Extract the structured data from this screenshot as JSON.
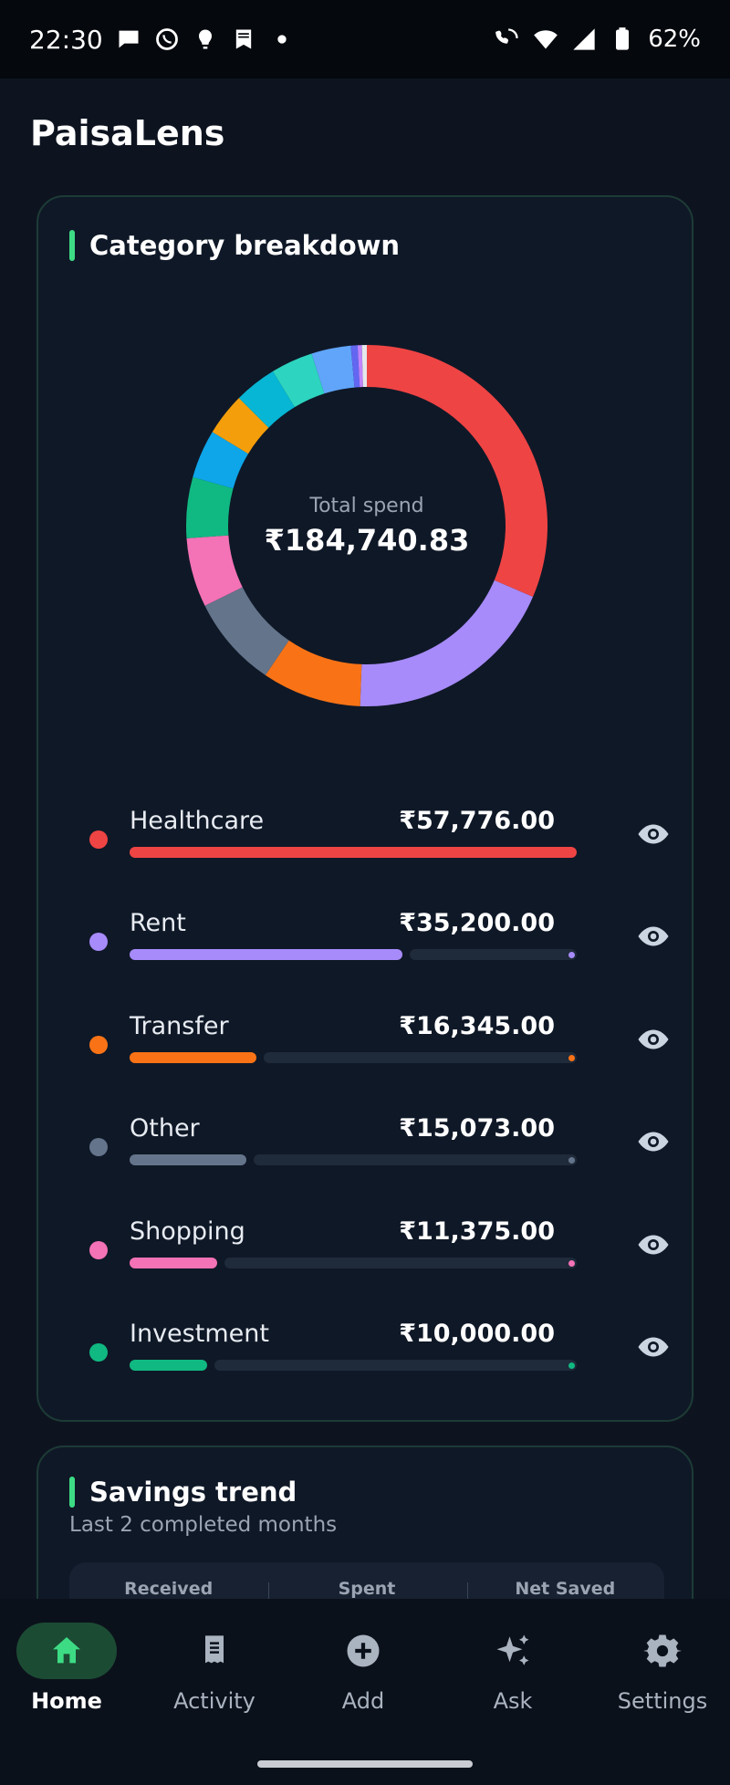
{
  "status_bar": {
    "time": "22:30",
    "battery": "62%",
    "left_icons": [
      "chat-bubble-icon",
      "whatsapp-icon",
      "notification-icon",
      "bookmark-icon",
      "dot-icon"
    ],
    "right_icons": [
      "wifi-call-icon",
      "wifi-icon",
      "signal-icon",
      "battery-icon"
    ]
  },
  "app": {
    "title": "PaisaLens"
  },
  "category_card": {
    "title": "Category breakdown",
    "donut_label": "Total spend",
    "total": "₹184,740.83",
    "categories": [
      {
        "name": "Healthcare",
        "amount": "₹57,776.00",
        "value": 57776,
        "color": "#ef4444"
      },
      {
        "name": "Rent",
        "amount": "₹35,200.00",
        "value": 35200,
        "color": "#a78bfa"
      },
      {
        "name": "Transfer",
        "amount": "₹16,345.00",
        "value": 16345,
        "color": "#f97316"
      },
      {
        "name": "Other",
        "amount": "₹15,073.00",
        "value": 15073,
        "color": "#64748b"
      },
      {
        "name": "Shopping",
        "amount": "₹11,375.00",
        "value": 11375,
        "color": "#f472b6"
      },
      {
        "name": "Investment",
        "amount": "₹10,000.00",
        "value": 10000,
        "color": "#10b981"
      }
    ],
    "donut_extra_segments": [
      {
        "value": 8000,
        "color": "#0ea5e9"
      },
      {
        "value": 7000,
        "color": "#f59e0b"
      },
      {
        "value": 7000,
        "color": "#06b6d4"
      },
      {
        "value": 6900,
        "color": "#2dd4bf"
      },
      {
        "value": 6500,
        "color": "#60a5fa"
      },
      {
        "value": 1100,
        "color": "#6366f1"
      },
      {
        "value": 700,
        "color": "#c084fc"
      },
      {
        "value": 800,
        "color": "#e5e7eb"
      }
    ]
  },
  "savings_card": {
    "title": "Savings trend",
    "subtitle": "Last 2 completed months",
    "headers": [
      "Received",
      "Spent",
      "Net Saved"
    ]
  },
  "nav": {
    "items": [
      {
        "label": "Home",
        "icon": "home-icon",
        "active": true
      },
      {
        "label": "Activity",
        "icon": "receipt-icon",
        "active": false
      },
      {
        "label": "Add",
        "icon": "add-circle-icon",
        "active": false
      },
      {
        "label": "Ask",
        "icon": "sparkle-icon",
        "active": false
      },
      {
        "label": "Settings",
        "icon": "gear-icon",
        "active": false
      }
    ]
  }
}
